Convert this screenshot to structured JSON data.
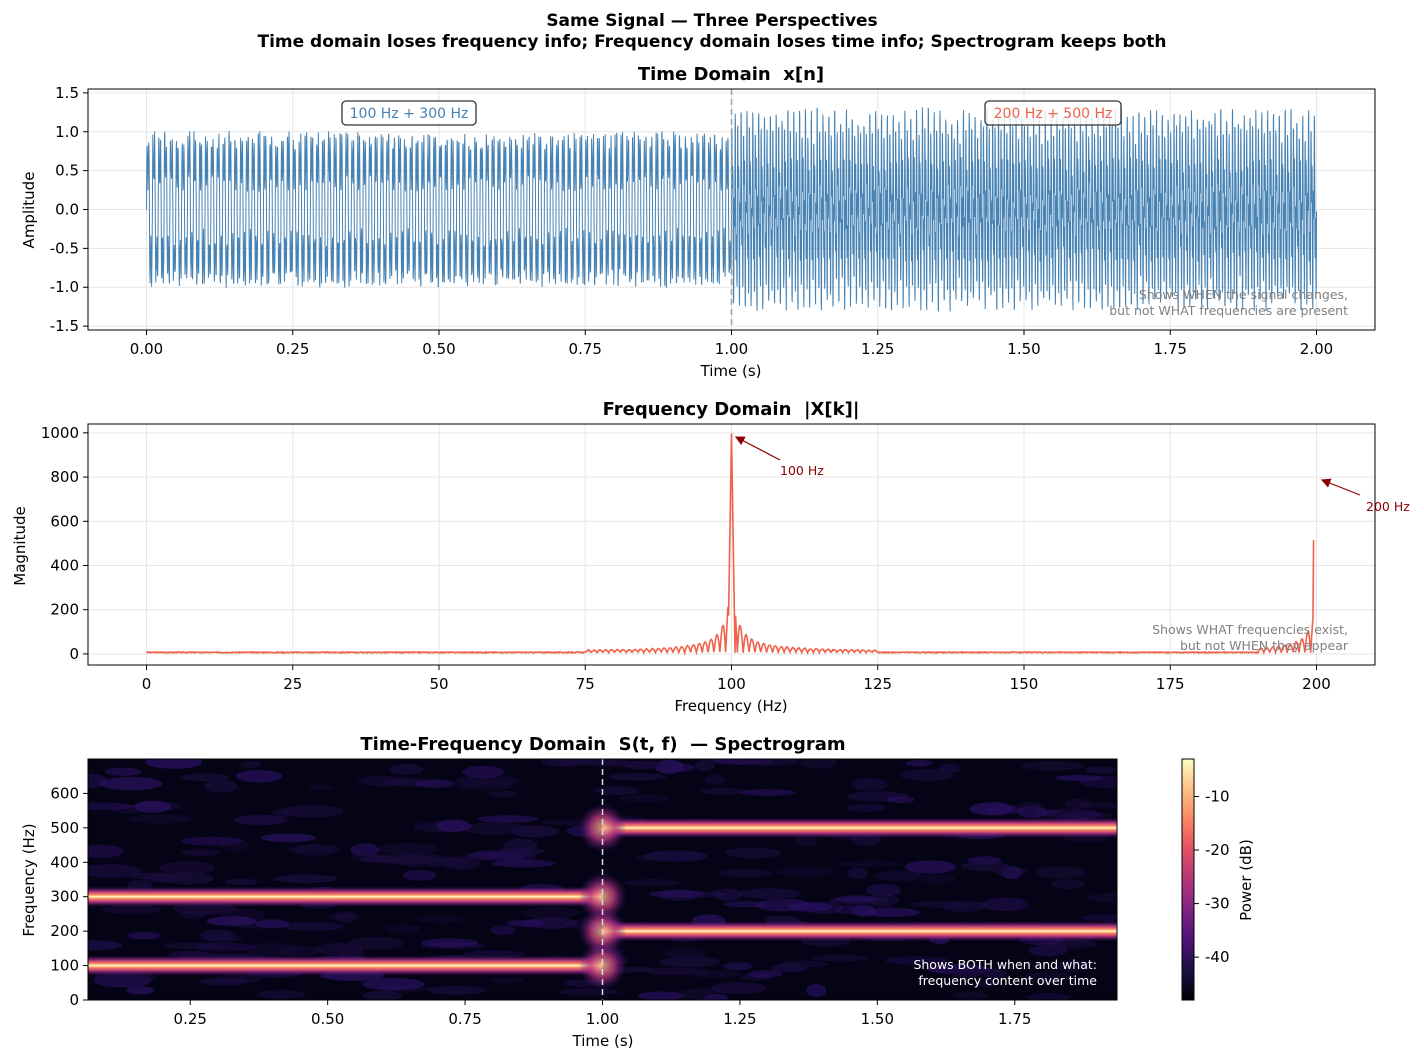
{
  "figure": {
    "title": "Same Signal — Three Perspectives",
    "subtitle": "Time domain loses frequency info; Frequency domain loses time info; Spectrogram keeps both"
  },
  "colors": {
    "time_line": "#4682b4",
    "freq_line": "#f0624a",
    "annotation_arrow": "#8b0000",
    "divider": "#9e9e9e",
    "note_text": "#808080"
  },
  "chart_data": [
    {
      "type": "line",
      "title": "Time Domain  x[n]",
      "xlabel": "Time (s)",
      "ylabel": "Amplitude",
      "xlim": [
        -0.1,
        2.1
      ],
      "ylim": [
        -1.55,
        1.55
      ],
      "xticks": [
        "0.00",
        "0.25",
        "0.50",
        "0.75",
        "1.00",
        "1.25",
        "1.50",
        "1.75",
        "2.00"
      ],
      "yticks": [
        "1.5",
        "1.0",
        "0.5",
        "0.0",
        "-0.5",
        "-1.0",
        "-1.5"
      ],
      "grid": true,
      "series": [
        {
          "segments": [
            {
              "t_start": 0.0,
              "t_end": 1.0,
              "frequencies_hz": [
                100,
                300
              ],
              "amplitude_envelope": [
                -1.25,
                1.25
              ]
            },
            {
              "t_start": 1.0,
              "t_end": 2.0,
              "frequencies_hz": [
                200,
                500
              ],
              "amplitude_envelope": [
                -1.4,
                1.4
              ]
            }
          ]
        }
      ],
      "vline_x": 1.0,
      "annotations": [
        {
          "text": "100 Hz + 300 Hz",
          "x": 0.45,
          "y": 1.22,
          "color": "#4682b4"
        },
        {
          "text": "200 Hz + 500 Hz",
          "x": 1.55,
          "y": 1.22,
          "color": "#f0624a"
        }
      ],
      "note": [
        "Shows WHEN the signal changes,",
        "but not WHAT frequencies are present"
      ]
    },
    {
      "type": "line",
      "title": "Frequency Domain  |X[k]|",
      "xlabel": "Frequency (Hz)",
      "ylabel": "Magnitude",
      "xlim": [
        -10,
        210
      ],
      "ylim": [
        -50,
        1040
      ],
      "xticks": [
        "0",
        "25",
        "50",
        "75",
        "100",
        "125",
        "150",
        "175",
        "200"
      ],
      "yticks": [
        "1000",
        "800",
        "600",
        "400",
        "200",
        "0"
      ],
      "grid": true,
      "series": [
        {
          "peaks": [
            {
              "freq_hz": 100,
              "magnitude": 990
            },
            {
              "freq_hz": 200,
              "magnitude": 515
            }
          ],
          "sidelobes_near_100": [
            210,
            205,
            130,
            110,
            95,
            80
          ],
          "noise_floor": 5
        }
      ],
      "annotations": [
        {
          "text": "100 Hz",
          "x": 100,
          "y": 990
        },
        {
          "text": "200 Hz",
          "x": 200,
          "y": 790
        }
      ],
      "note": [
        "Shows WHAT frequencies exist,",
        "but not WHEN they appear"
      ]
    },
    {
      "type": "heatmap",
      "title": "Time-Frequency Domain  S(t, f)  — Spectrogram",
      "xlabel": "Time (s)",
      "ylabel": "Frequency (Hz)",
      "xlim": [
        0.064,
        1.936
      ],
      "ylim": [
        0,
        700
      ],
      "xticks": [
        "0.25",
        "0.50",
        "0.75",
        "1.00",
        "1.25",
        "1.50",
        "1.75"
      ],
      "yticks": [
        "600",
        "500",
        "400",
        "300",
        "200",
        "100",
        "0"
      ],
      "bands": [
        {
          "freq_hz": 100,
          "t_start": 0.064,
          "t_end": 1.0
        },
        {
          "freq_hz": 300,
          "t_start": 0.064,
          "t_end": 1.0
        },
        {
          "freq_hz": 200,
          "t_start": 1.0,
          "t_end": 1.936
        },
        {
          "freq_hz": 500,
          "t_start": 1.0,
          "t_end": 1.936
        }
      ],
      "vline_x": 1.0,
      "colorbar": {
        "label": "Power (dB)",
        "range": [
          -48,
          -3
        ],
        "ticks": [
          "-10",
          "-20",
          "-30",
          "-40"
        ]
      },
      "note": [
        "Shows BOTH when and what:",
        "frequency content over time"
      ]
    }
  ]
}
